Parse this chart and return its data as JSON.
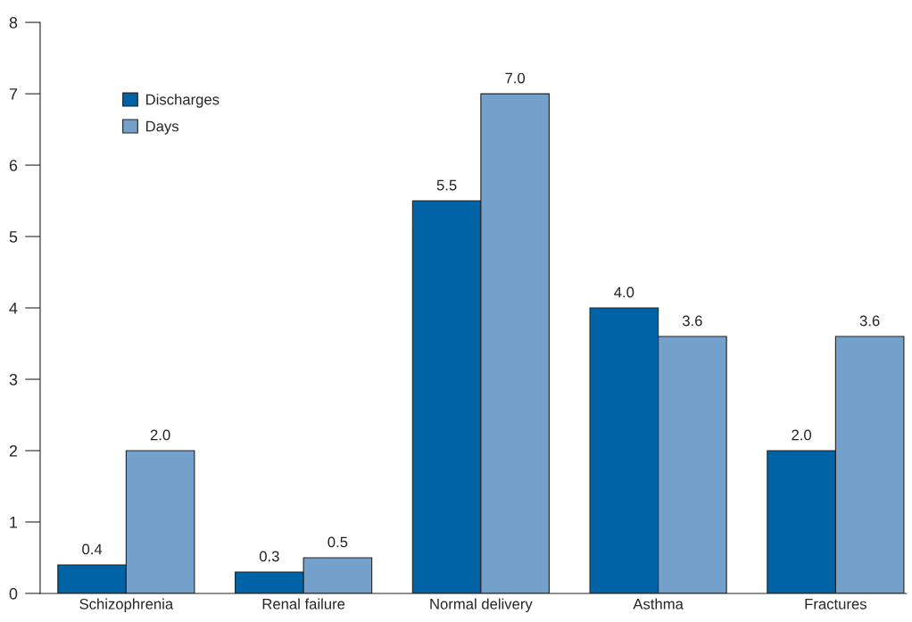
{
  "chart_data": {
    "type": "bar",
    "categories": [
      "Schizophrenia",
      "Renal failure",
      "Normal delivery",
      "Asthma",
      "Fractures"
    ],
    "series": [
      {
        "name": "Discharges",
        "color": "#0063a6",
        "values": [
          0.4,
          0.3,
          5.5,
          4.0,
          2.0
        ],
        "value_labels": [
          "0.4",
          "0.3",
          "5.5",
          "4.0",
          "2.0"
        ]
      },
      {
        "name": "Days",
        "color": "#74a0cc",
        "values": [
          2.0,
          0.5,
          7.0,
          3.6,
          3.6
        ],
        "value_labels": [
          "2.0",
          "0.5",
          "7.0",
          "3.6",
          "3.6"
        ]
      }
    ],
    "ylim": [
      0,
      8
    ],
    "yticks": [
      0,
      1,
      2,
      3,
      4,
      5,
      6,
      7,
      8
    ],
    "grid": false,
    "legend": "top left"
  }
}
